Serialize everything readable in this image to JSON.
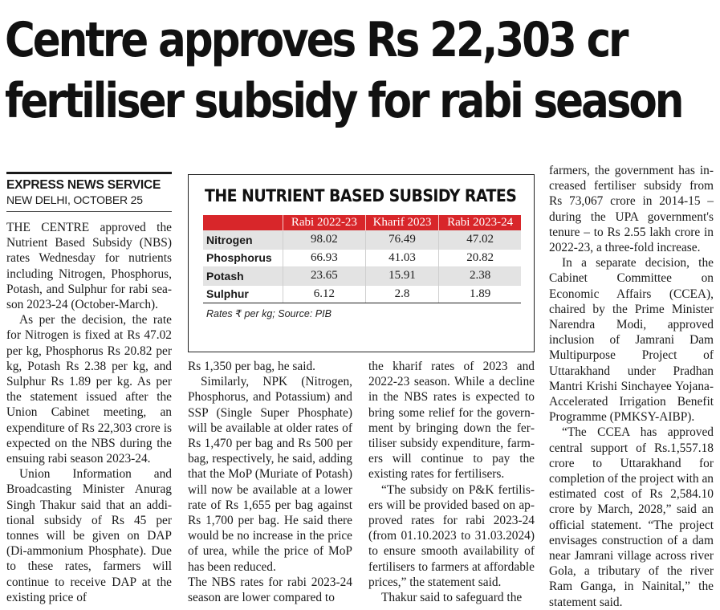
{
  "headline": {
    "line1": "Centre approves Rs 22,303 cr",
    "line2": "fertiliser subsidy for rabi season"
  },
  "byline": {
    "agency": "EXPRESS NEWS SERVICE",
    "dateline": "NEW DELHI, OCTOBER 25"
  },
  "table": {
    "title": "THE NUTRIENT BASED SUBSIDY RATES",
    "columns": [
      "Rabi 2022-23",
      "Kharif 2023",
      "Rabi 2023-24"
    ],
    "rows": [
      {
        "nutrient": "Nitrogen",
        "values": [
          "98.02",
          "76.49",
          "47.02"
        ]
      },
      {
        "nutrient": "Phosphorus",
        "values": [
          "66.93",
          "41.03",
          "20.82"
        ]
      },
      {
        "nutrient": "Potash",
        "values": [
          "23.65",
          "15.91",
          "2.38"
        ]
      },
      {
        "nutrient": "Sulphur",
        "values": [
          "6.12",
          "2.8",
          "1.89"
        ]
      }
    ],
    "source": "Rates ₹ per kg; Source: PIB"
  },
  "col1": {
    "p1": "THE CENTRE approved the Nutrient Based Subsidy (NBS) rates Wednesday for nutrients including Nitrogen, Phosphorus, Potash, and Sulphur for rabi sea­son 2023-24 (October-March).",
    "p2": "As per the decision, the rate for Nitrogen is fixed at Rs 47.02 per kg, Phosphorus Rs 20.82 per kg, Potash Rs 2.38 per kg, and Sulphur Rs 1.89 per kg. As per the statement issued after the Union Cabinet meeting, an expenditure of Rs 22,303 crore is expected on the NBS during the ensuing rabi season 2023-24.",
    "p3": "Union Information and Broadcasting Minister Anurag Singh Thakur said that an addi­tional subsidy of Rs 45 per tonnes will be given on DAP (Di-ammo­nium Phosphate). Due to these rates, farmers will continue to re­ceive DAP at the existing price of"
  },
  "col2": {
    "p1": "Rs 1,350 per bag, he said.",
    "p2": "Similarly, NPK (Nitrogen, Phosphorus, and Potassium) and SSP (Single Super Phosphate) will be available at older rates of Rs 1,470 per bag and Rs 500 per bag, respectively, he said, adding that the MoP (Muriate of Potash) will now be available at a lower rate of Rs 1,655 per bag against Rs 1,700 per bag. He said there would be no increase in the price of urea, while the price of MoP has been reduced.",
    "p3": "The NBS rates for rabi 2023-24 season are lower compared to"
  },
  "col3": {
    "p1": "the kharif rates of 2023 and 2022-23 season. While a decline in the NBS rates is expected to bring some relief for the govern­ment by bringing down the fer­tiliser subsidy expenditure, farm­ers will continue to pay the existing rates for fertilisers.",
    "p2": "“The subsidy on P&K fertilis­ers will be provided based on ap­proved rates for rabi 2023-24 (from 01.10.2023 to 31.03.2024) to ensure smooth availability of fertilisers to farmers at affordable prices,” the statement said.",
    "p3": "Thakur said to safeguard the"
  },
  "col4": {
    "p1": "farmers, the government has in­creased fertiliser subsidy from Rs 73,067 crore in 2014-15 – during the UPA government's tenure – to Rs 2.55 lakh crore in 2022-23, a three-fold increase.",
    "p2": "In a separate decision, the Cabinet Committee on Economic Affairs (CCEA), chaired by the Prime Minister Narendra Modi, approved inclusion of Jamrani Dam Multipurpose Project of Uttarakhand under Pradhan Mantri Krishi Sinchayee Yojana-Accelerated Irrigation Benefit Programme (PMKSY-AIBP).",
    "p3": "“The CCEA has approved cen­tral support of Rs.1,557.18 crore to Uttarakhand for completion of the project with an estimated cost of Rs 2,584.10 crore by March, 2028,” said an official statement. “The project envis­ages construction of a dam near Jamrani village across river Gola, a tributary of the river Ram Ganga, in Nainital,” the state­ment said."
  }
}
